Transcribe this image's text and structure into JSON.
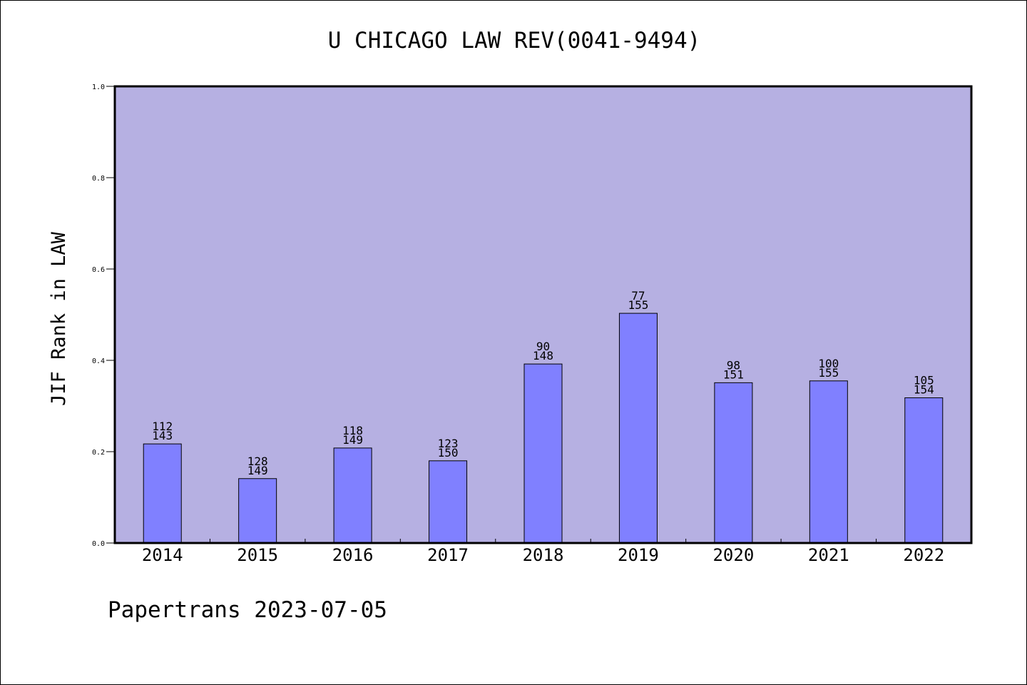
{
  "chart_data": {
    "type": "bar",
    "title": "U CHICAGO LAW REV(0041-9494)",
    "xlabel": "",
    "ylabel": "JIF Rank in LAW",
    "ylim": [
      0,
      1.0
    ],
    "yticks": [
      "0.0",
      "0.2",
      "0.4",
      "0.6",
      "0.8",
      "1.0"
    ],
    "categories": [
      "2014",
      "2015",
      "2016",
      "2017",
      "2018",
      "2019",
      "2020",
      "2021",
      "2022"
    ],
    "values": [
      0.217,
      0.141,
      0.208,
      0.18,
      0.392,
      0.503,
      0.351,
      0.355,
      0.318
    ],
    "ranks": [
      "112",
      "128",
      "118",
      "123",
      "90",
      "77",
      "98",
      "100",
      "105"
    ],
    "totals": [
      "143",
      "149",
      "149",
      "150",
      "148",
      "155",
      "151",
      "155",
      "154"
    ],
    "grid": false,
    "legend": "none",
    "colors": {
      "plot_background": "#b6b0e2",
      "bar_fill": "#8080ff",
      "bar_edge": "#000000"
    }
  },
  "footer": "Papertrans 2023-07-05"
}
